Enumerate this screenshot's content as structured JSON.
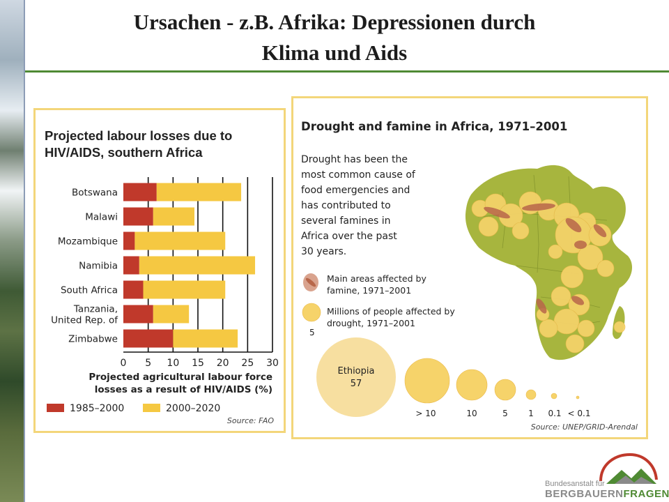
{
  "slide": {
    "title_line1": "Ursachen - z.B. Afrika: Depressionen durch",
    "title_line2": "Klima und Aids",
    "colors": {
      "rule": "#4f8a33",
      "panel_border": "#f3d67a"
    }
  },
  "left_chart": {
    "source": "Source: FAO",
    "chart_data": {
      "type": "bar",
      "stacked": true,
      "orientation": "horizontal",
      "title": "Projected labour losses due to HIV/AIDS, southern Africa",
      "xlabel": "Projected agricultural labour force losses as a result of HIV/AIDS (%)",
      "xlabel_line1": "Projected agricultural labour force",
      "xlabel_line2": "losses as a result of HIV/AIDS (%)",
      "xlim": [
        0,
        30
      ],
      "xticks": [
        "0",
        "5",
        "10",
        "15",
        "20",
        "25",
        "30"
      ],
      "grid": "vertical",
      "legend_position": "bottom",
      "categories": [
        "Botswana",
        "Malawi",
        "Mozambique",
        "Namibia",
        "South Africa",
        "Tanzania, United Rep. of",
        "Zimbabwe"
      ],
      "category_lines": [
        [
          "Botswana"
        ],
        [
          "Malawi"
        ],
        [
          "Mozambique"
        ],
        [
          "Namibia"
        ],
        [
          "South Africa"
        ],
        [
          "Tanzania,",
          "United Rep. of"
        ],
        [
          "Zimbabwe"
        ]
      ],
      "series": [
        {
          "name": "1985–2000",
          "color": "#c0392b",
          "values": [
            6.7,
            6.0,
            2.3,
            3.2,
            4.0,
            6.0,
            10.0
          ]
        },
        {
          "name": "2000–2020",
          "color": "#f5c842",
          "values": [
            17.0,
            8.3,
            18.2,
            23.3,
            16.5,
            7.2,
            13.0
          ]
        }
      ]
    }
  },
  "right_map": {
    "title": "Drought and famine in Africa, 1971–2001",
    "description_lines": [
      "Drought has been the",
      "most common cause of",
      "food emergencies and",
      "has contributed to",
      "several famines in",
      "Africa over the past",
      "30 years."
    ],
    "legend_famine": [
      "Main areas affected by",
      "famine, 1971–2001"
    ],
    "legend_drought": [
      "Millions of people affected by",
      "drought, 1971–2001"
    ],
    "legend_drought_example": "5",
    "ethiopia_label": "Ethiopia",
    "ethiopia_value": "57",
    "size_labels": [
      "> 10",
      "10",
      "5",
      "1",
      "0.1",
      "< 0.1"
    ],
    "source": "Source: UNEP/GRID-Arendal",
    "colors": {
      "land": "#a7b53e",
      "bubble": "#f6d36a",
      "famine": "#b8674a"
    }
  },
  "logo": {
    "small_text": "Bundesanstalt für",
    "brand_a": "BERGBAUERN",
    "brand_b": "FRAGEN"
  }
}
